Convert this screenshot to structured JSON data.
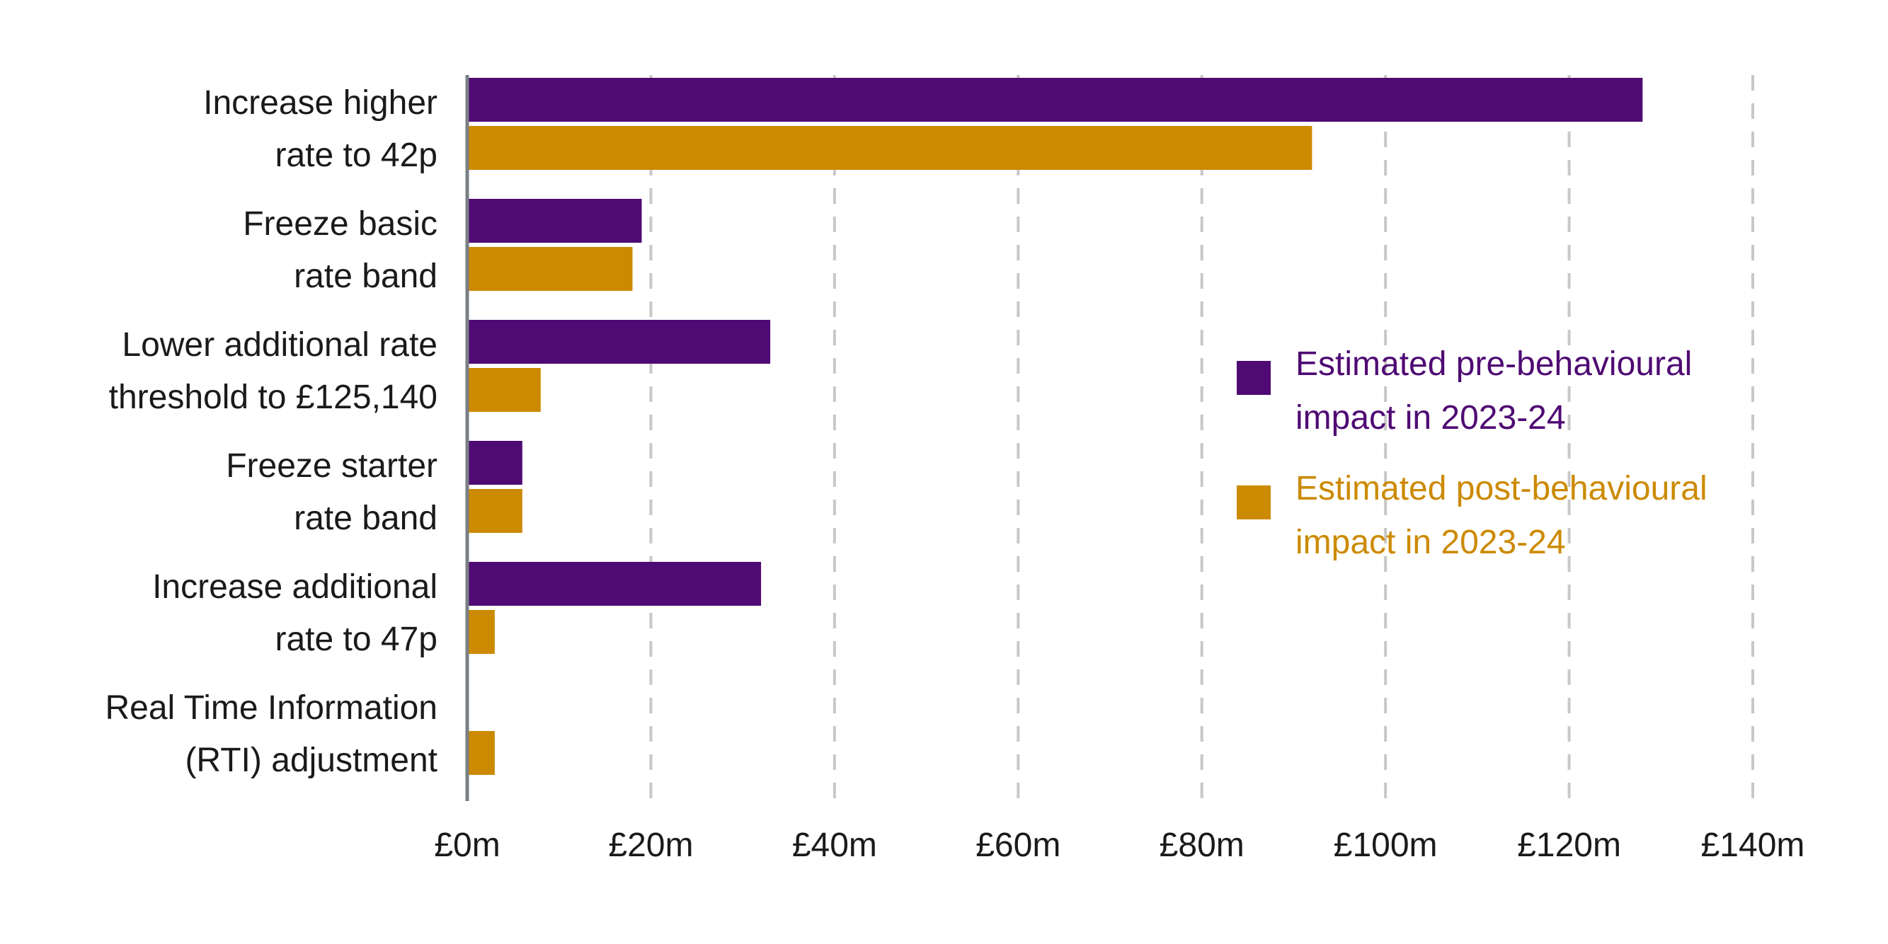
{
  "chart_data": {
    "type": "bar",
    "orientation": "horizontal",
    "categories": [
      [
        "Increase higher",
        "rate to 42p"
      ],
      [
        "Freeze basic",
        "rate band"
      ],
      [
        "Lower additional rate",
        "threshold to £125,140"
      ],
      [
        "Freeze starter",
        "rate band"
      ],
      [
        "Increase additional",
        "rate to 47p"
      ],
      [
        "Real Time Information",
        "(RTI) adjustment"
      ]
    ],
    "series": [
      {
        "name": [
          "Estimated pre-behavioural",
          "impact in 2023-24"
        ],
        "color": "#4f0a73",
        "values": [
          128,
          19,
          33,
          6,
          32,
          0
        ]
      },
      {
        "name": [
          "Estimated post-behavioural",
          "impact in 2023-24"
        ],
        "color": "#cc8a00",
        "values": [
          92,
          18,
          8,
          6,
          3,
          3
        ]
      }
    ],
    "xlim": [
      0,
      140
    ],
    "xticks": [
      0,
      20,
      40,
      60,
      80,
      100,
      120,
      140
    ],
    "xtick_labels": [
      "£0m",
      "£20m",
      "£40m",
      "£60m",
      "£80m",
      "£100m",
      "£120m",
      "£140m"
    ],
    "unit": "£m",
    "grid": "vertical dashed",
    "legend": "right",
    "title": "",
    "xlabel": "",
    "ylabel": ""
  }
}
